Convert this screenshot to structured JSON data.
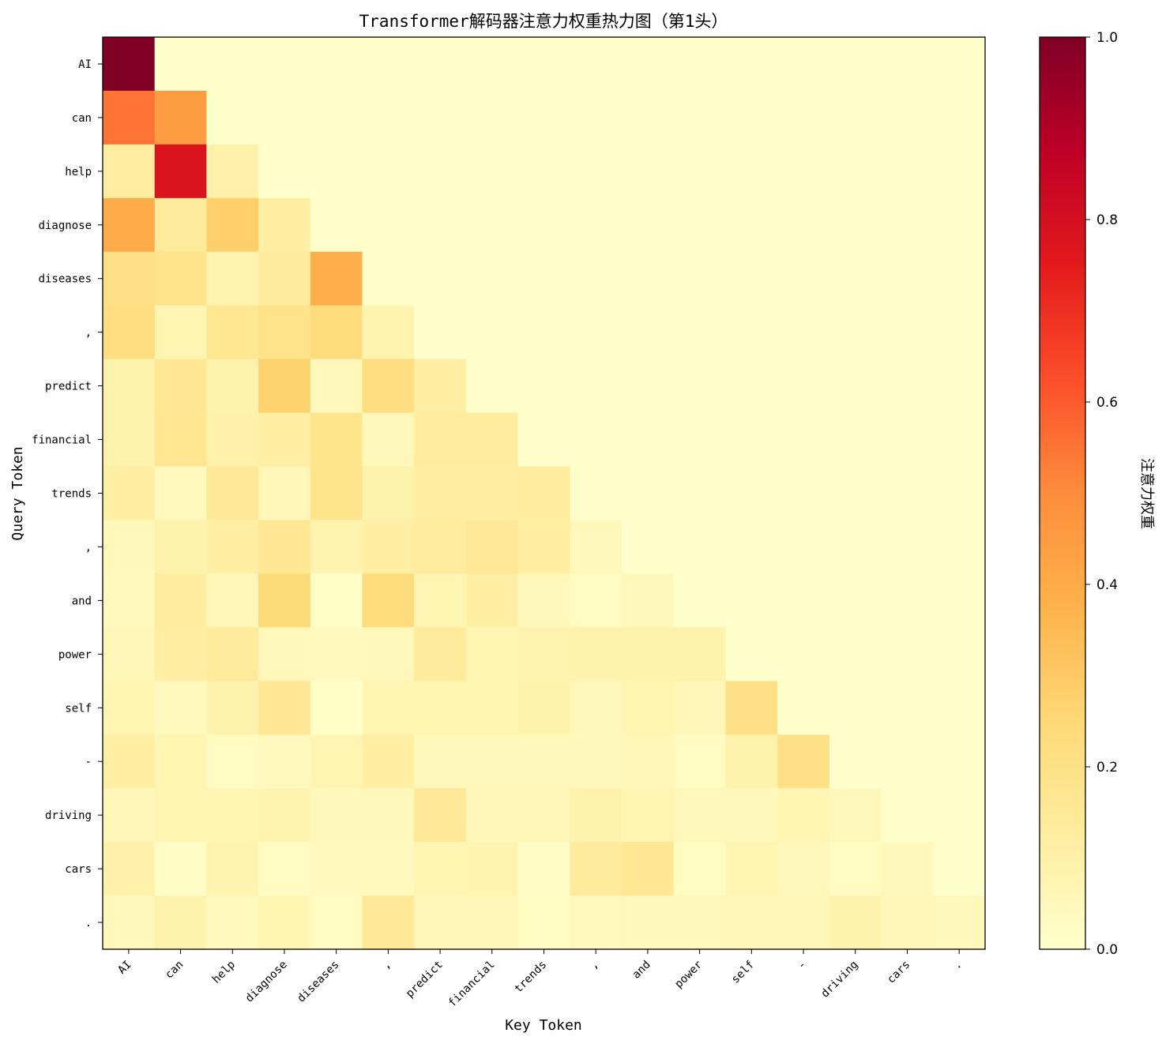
{
  "chart_data": {
    "type": "heatmap",
    "title": "Transformer解码器注意力权重热力图（第1头）",
    "xlabel": "Key Token",
    "ylabel": "Query Token",
    "x_tokens": [
      "AI",
      "can",
      "help",
      "diagnose",
      "diseases",
      ",",
      "predict",
      "financial",
      "trends",
      ",",
      "and",
      "power",
      "self",
      "-",
      "driving",
      "cars",
      "."
    ],
    "y_tokens": [
      "AI",
      "can",
      "help",
      "diagnose",
      "diseases",
      ",",
      "predict",
      "financial",
      "trends",
      ",",
      "and",
      "power",
      "self",
      "-",
      "driving",
      "cars",
      "."
    ],
    "values": [
      [
        1.0,
        0,
        0,
        0,
        0,
        0,
        0,
        0,
        0,
        0,
        0,
        0,
        0,
        0,
        0,
        0,
        0
      ],
      [
        0.55,
        0.45,
        0,
        0,
        0,
        0,
        0,
        0,
        0,
        0,
        0,
        0,
        0,
        0,
        0,
        0,
        0
      ],
      [
        0.12,
        0.78,
        0.1,
        0,
        0,
        0,
        0,
        0,
        0,
        0,
        0,
        0,
        0,
        0,
        0,
        0,
        0
      ],
      [
        0.4,
        0.14,
        0.28,
        0.11,
        0,
        0,
        0,
        0,
        0,
        0,
        0,
        0,
        0,
        0,
        0,
        0,
        0
      ],
      [
        0.2,
        0.19,
        0.08,
        0.14,
        0.39,
        0,
        0,
        0,
        0,
        0,
        0,
        0,
        0,
        0,
        0,
        0,
        0
      ],
      [
        0.22,
        0.07,
        0.17,
        0.19,
        0.23,
        0.08,
        0,
        0,
        0,
        0,
        0,
        0,
        0,
        0,
        0,
        0,
        0
      ],
      [
        0.09,
        0.16,
        0.09,
        0.27,
        0.05,
        0.22,
        0.11,
        0,
        0,
        0,
        0,
        0,
        0,
        0,
        0,
        0,
        0
      ],
      [
        0.09,
        0.17,
        0.1,
        0.11,
        0.18,
        0.05,
        0.13,
        0.13,
        0,
        0,
        0,
        0,
        0,
        0,
        0,
        0,
        0
      ],
      [
        0.11,
        0.04,
        0.15,
        0.06,
        0.18,
        0.09,
        0.11,
        0.11,
        0.13,
        0,
        0,
        0,
        0,
        0,
        0,
        0,
        0
      ],
      [
        0.05,
        0.09,
        0.11,
        0.16,
        0.08,
        0.11,
        0.13,
        0.15,
        0.12,
        0.05,
        0,
        0,
        0,
        0,
        0,
        0,
        0
      ],
      [
        0.04,
        0.13,
        0.06,
        0.24,
        0.01,
        0.23,
        0.07,
        0.11,
        0.05,
        0.03,
        0.05,
        0,
        0,
        0,
        0,
        0,
        0
      ],
      [
        0.06,
        0.11,
        0.14,
        0.05,
        0.04,
        0.05,
        0.14,
        0.07,
        0.08,
        0.09,
        0.09,
        0.09,
        0,
        0,
        0,
        0,
        0
      ],
      [
        0.07,
        0.04,
        0.09,
        0.16,
        0.01,
        0.07,
        0.07,
        0.07,
        0.09,
        0.05,
        0.07,
        0.06,
        0.2,
        0,
        0,
        0,
        0
      ],
      [
        0.11,
        0.07,
        0.03,
        0.04,
        0.07,
        0.11,
        0.05,
        0.05,
        0.05,
        0.05,
        0.06,
        0.03,
        0.09,
        0.2,
        0,
        0,
        0
      ],
      [
        0.06,
        0.07,
        0.07,
        0.08,
        0.05,
        0.05,
        0.15,
        0.06,
        0.06,
        0.09,
        0.07,
        0.05,
        0.05,
        0.07,
        0.05,
        0,
        0
      ],
      [
        0.1,
        0.02,
        0.08,
        0.03,
        0.04,
        0.04,
        0.07,
        0.08,
        0.02,
        0.14,
        0.16,
        0.03,
        0.07,
        0.05,
        0.03,
        0.05,
        0
      ],
      [
        0.05,
        0.09,
        0.04,
        0.07,
        0.03,
        0.15,
        0.06,
        0.06,
        0.03,
        0.04,
        0.05,
        0.05,
        0.06,
        0.06,
        0.09,
        0.06,
        0.05
      ]
    ],
    "colormap": "YlOrRd",
    "colorbar": {
      "label": "注意力权重",
      "range": [
        0,
        1.0
      ],
      "ticks": [
        "0.0",
        "0.2",
        "0.4",
        "0.6",
        "0.8",
        "1.0"
      ]
    }
  }
}
